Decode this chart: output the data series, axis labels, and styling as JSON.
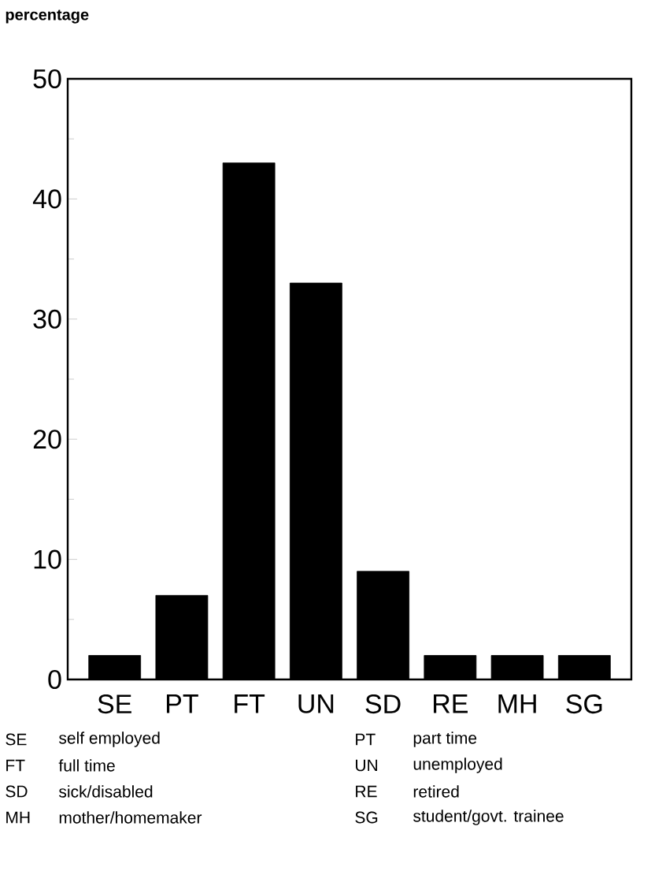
{
  "chart_data": {
    "type": "bar",
    "ylabel": "percentage",
    "categories": [
      "SE",
      "PT",
      "FT",
      "UN",
      "SD",
      "RE",
      "MH",
      "SG"
    ],
    "values": [
      2,
      7,
      43,
      33,
      9,
      2,
      2,
      2
    ],
    "color": "#000000",
    "ylim": [
      0,
      50
    ],
    "yticks": [
      0,
      10,
      20,
      30,
      40,
      50
    ],
    "annotations": [
      "SE",
      "self employed",
      "PT",
      "part time",
      "FT",
      "full time",
      "UN",
      "unemployed",
      "SD",
      "sick/disabled",
      "RE",
      "retired",
      "MH",
      "mother/homemaker",
      "SG",
      "student/govt. trainee"
    ]
  }
}
